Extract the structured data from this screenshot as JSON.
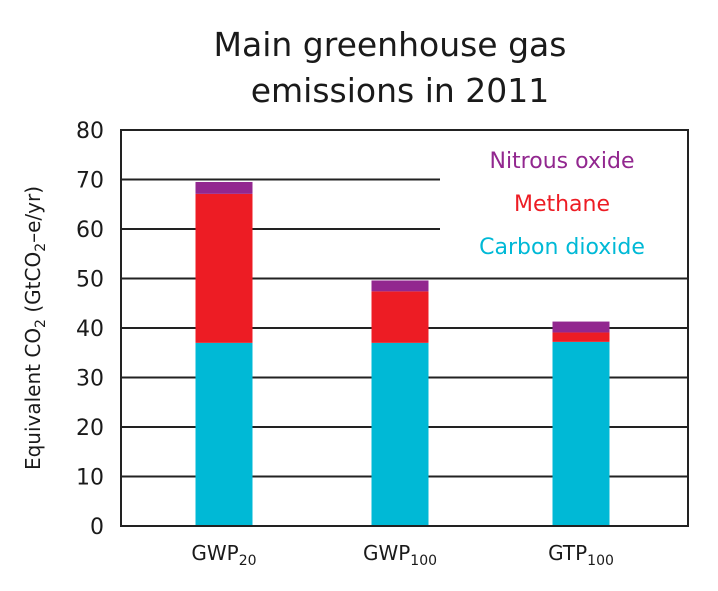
{
  "chart_data": {
    "type": "bar",
    "stacked": true,
    "title_lines": [
      "Main greenhouse gas",
      "emissions in 2011"
    ],
    "ylabel": {
      "main": "Equivalent CO",
      "sub": "2",
      "rest": " (GtCO",
      "sub2": "2",
      "end": "–e/yr)"
    },
    "ylim": [
      0,
      80
    ],
    "yticks": [
      0,
      10,
      20,
      30,
      40,
      50,
      60,
      70,
      80
    ],
    "categories": [
      {
        "main": "GWP",
        "sub": "20"
      },
      {
        "main": "GWP",
        "sub": "100"
      },
      {
        "main": "GTP",
        "sub": "100"
      }
    ],
    "series": [
      {
        "name": "Carbon dioxide",
        "color": "#00b9d6",
        "values": [
          37.0,
          37.0,
          37.2
        ]
      },
      {
        "name": "Methane",
        "color": "#ed1c24",
        "values": [
          30.1,
          10.4,
          1.9
        ]
      },
      {
        "name": "Nitrous oxide",
        "color": "#92278f",
        "values": [
          2.4,
          2.2,
          2.2
        ]
      }
    ],
    "legend": {
      "placement": "top-right",
      "order": [
        "Nitrous oxide",
        "Methane",
        "Carbon dioxide"
      ]
    },
    "grid": true
  }
}
